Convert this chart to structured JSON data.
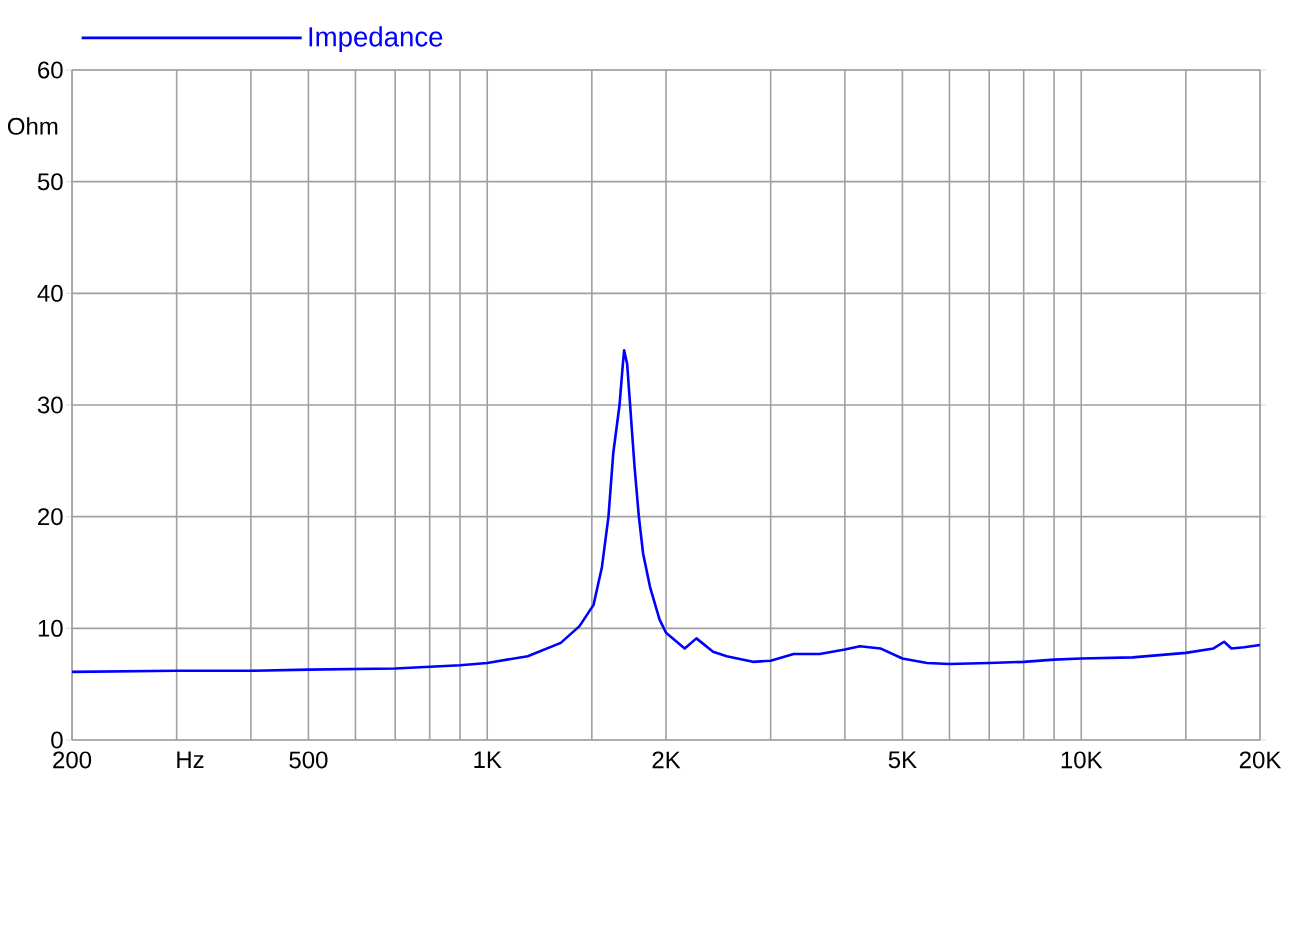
{
  "chart_data": {
    "type": "line",
    "xlabel": "Hz",
    "ylabel": "Ohm",
    "log": "x",
    "grid": true,
    "legend": "top left",
    "xlim": [
      200,
      20000
    ],
    "ylim": [
      0,
      60
    ],
    "xticks": [
      200,
      {
        "value": 300,
        "label": null
      },
      {
        "value": 400,
        "label": null
      },
      500,
      {
        "value": 600,
        "label": null
      },
      {
        "value": 700,
        "label": null
      },
      {
        "value": 800,
        "label": null
      },
      {
        "value": 900,
        "label": null
      },
      {
        "value": 1000,
        "label": "1K"
      },
      {
        "value": 1500,
        "label": null
      },
      {
        "value": 2000,
        "label": "2K"
      },
      {
        "value": 3000,
        "label": null
      },
      {
        "value": 4000,
        "label": null
      },
      {
        "value": 5000,
        "label": "5K"
      },
      {
        "value": 6000,
        "label": null
      },
      {
        "value": 7000,
        "label": null
      },
      {
        "value": 8000,
        "label": null
      },
      {
        "value": 9000,
        "label": null
      },
      {
        "value": 10000,
        "label": "10K"
      },
      {
        "value": 15000,
        "label": null
      },
      {
        "value": 20000,
        "label": "20K"
      }
    ],
    "yticks": [
      0,
      10,
      20,
      30,
      40,
      50,
      60
    ],
    "x": [
      200,
      300,
      400,
      500,
      700,
      900,
      1000,
      1170,
      1330,
      1430,
      1510,
      1560,
      1600,
      1630,
      1670,
      1690,
      1700,
      1720,
      1740,
      1770,
      1800,
      1830,
      1880,
      1950,
      2000,
      2150,
      2250,
      2400,
      2530,
      2800,
      3000,
      3280,
      3630,
      4000,
      4240,
      4590,
      5000,
      5500,
      6000,
      7000,
      8000,
      9000,
      10000,
      12200,
      15000,
      16700,
      17400,
      17900,
      18800,
      20000
    ],
    "series": [
      {
        "name": "Impedance",
        "color": "#0000ff",
        "values": [
          6.1,
          6.2,
          6.2,
          6.3,
          6.4,
          6.7,
          6.9,
          7.5,
          8.7,
          10.2,
          12.1,
          15.5,
          20,
          25.7,
          30,
          33.4,
          34.9,
          33.7,
          30,
          24.5,
          20,
          16.7,
          13.7,
          10.8,
          9.6,
          8.2,
          9.1,
          7.9,
          7.5,
          7.0,
          7.1,
          7.7,
          7.7,
          8.1,
          8.4,
          8.2,
          7.3,
          6.9,
          6.8,
          6.9,
          7.0,
          7.2,
          7.3,
          7.4,
          7.8,
          8.2,
          8.8,
          8.2,
          8.3,
          8.5
        ]
      }
    ]
  }
}
